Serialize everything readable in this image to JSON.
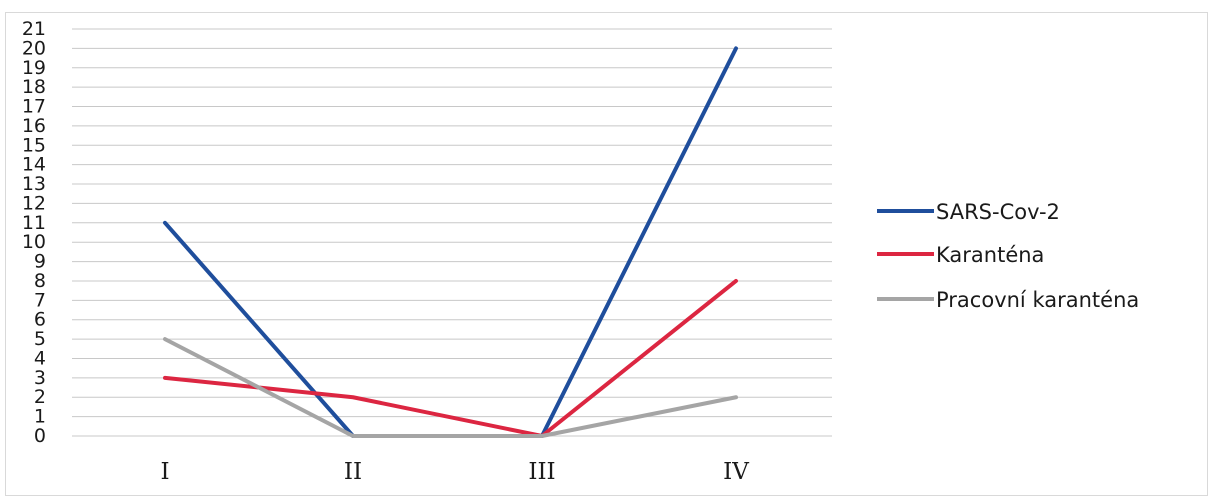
{
  "chart_data": {
    "type": "line",
    "categories": [
      "I",
      "II",
      "III",
      "IV"
    ],
    "ylim": [
      0,
      21
    ],
    "yticks": [
      0,
      1,
      2,
      3,
      4,
      5,
      6,
      7,
      8,
      9,
      10,
      11,
      12,
      13,
      14,
      15,
      16,
      17,
      18,
      19,
      20,
      21
    ],
    "grid": true,
    "legend_position": "right",
    "series": [
      {
        "name": "SARS-Cov-2",
        "color": "#1f4e9c",
        "values": [
          11,
          0,
          0,
          20
        ]
      },
      {
        "name": "Karanténa",
        "color": "#dc2641",
        "values": [
          3,
          2,
          0,
          8
        ]
      },
      {
        "name": "Pracovní karanténa",
        "color": "#a5a5a5",
        "values": [
          5,
          0,
          0,
          2
        ]
      }
    ]
  }
}
